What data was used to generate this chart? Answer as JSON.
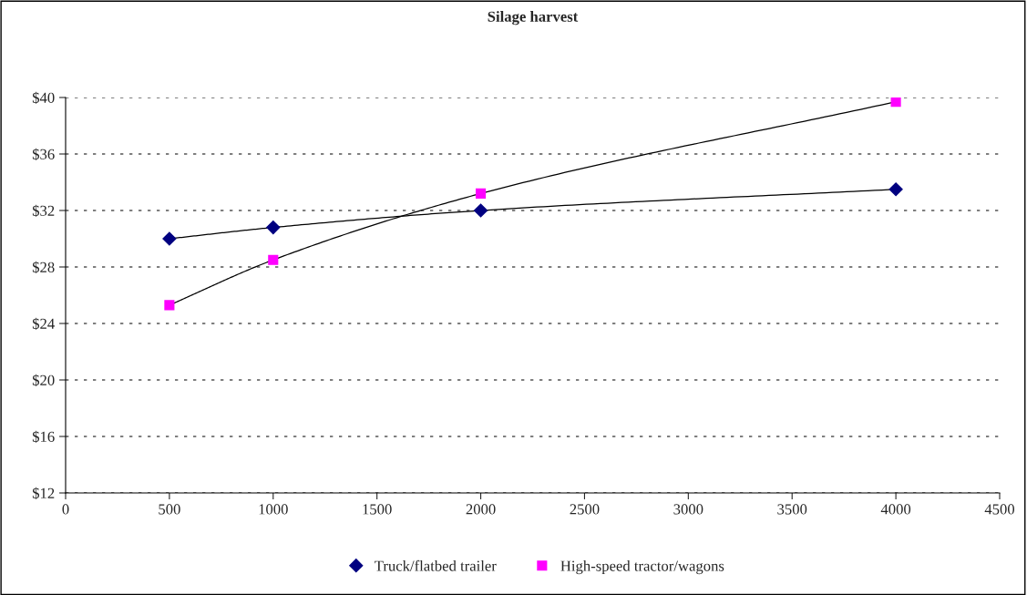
{
  "chart_data": {
    "type": "line",
    "title": "Silage harvest",
    "x": [
      500,
      1000,
      2000,
      4000
    ],
    "series": [
      {
        "name": "Truck/flatbed trailer",
        "color": "#000080",
        "marker": "diamond",
        "values": [
          30.0,
          30.8,
          32.0,
          33.5
        ]
      },
      {
        "name": "High-speed tractor/wagons",
        "color": "#ff00ff",
        "marker": "square",
        "values": [
          25.3,
          28.5,
          33.2,
          39.7
        ]
      }
    ],
    "xlim": [
      0,
      4500
    ],
    "xticks": [
      0,
      500,
      1000,
      1500,
      2000,
      2500,
      3000,
      3500,
      4000,
      4500
    ],
    "ylim": [
      12,
      40
    ],
    "yticks": [
      {
        "value": 12,
        "label": "$12"
      },
      {
        "value": 16,
        "label": "$16"
      },
      {
        "value": 20,
        "label": "$20"
      },
      {
        "value": 24,
        "label": "$24"
      },
      {
        "value": 28,
        "label": "$28"
      },
      {
        "value": 32,
        "label": "$32"
      },
      {
        "value": 36,
        "label": "$36"
      },
      {
        "value": 40,
        "label": "$40"
      }
    ],
    "grid": "y",
    "legend": "bottom"
  }
}
